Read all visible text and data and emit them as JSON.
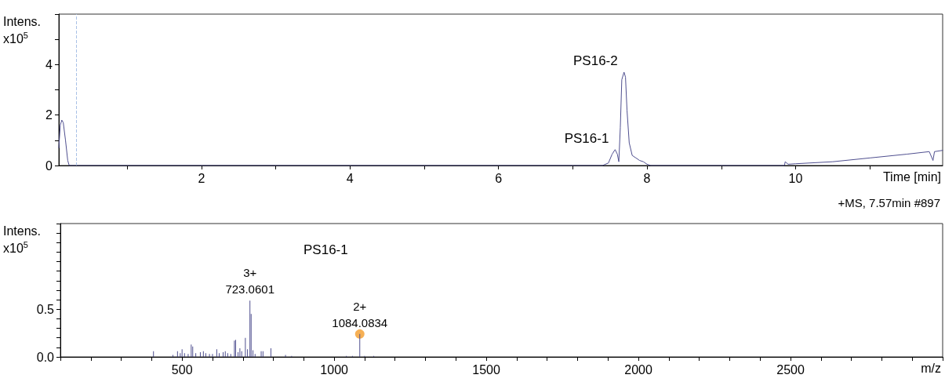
{
  "chart_data": [
    {
      "type": "line",
      "xlabel": "Time [min]",
      "ylabel": "Intens.\nx10$^{5}$",
      "xlim": [
        0.08,
        11.98
      ],
      "ylim": [
        0,
        6
      ],
      "xticks": [
        {
          "value": 1,
          "label": null
        },
        2,
        {
          "value": 3,
          "label": null
        },
        4,
        {
          "value": 5,
          "label": null
        },
        6,
        {
          "value": 7,
          "label": null
        },
        8,
        {
          "value": 9,
          "label": null
        },
        10,
        {
          "value": 11,
          "label": null
        }
      ],
      "yticks": [
        0,
        {
          "value": 1,
          "label": null
        },
        2,
        {
          "value": 3,
          "label": null
        },
        4,
        {
          "value": 5,
          "label": null
        },
        {
          "value": 6,
          "label": null
        }
      ],
      "series": [
        {
          "color": "#4f4f8f",
          "x": [
            0.08,
            0.1,
            0.12,
            0.14,
            0.17,
            0.2,
            0.22,
            1,
            2,
            3,
            4,
            5,
            6,
            7,
            7.4,
            7.48,
            7.53,
            7.57,
            7.6,
            7.62,
            7.64,
            7.66,
            7.69,
            7.71,
            7.73,
            7.76,
            7.8,
            7.85,
            7.9,
            7.95,
            8,
            8.05,
            9,
            9.85,
            9.86,
            9.9,
            10,
            10.5,
            11,
            11.5,
            11.8,
            11.85,
            11.87,
            11.98
          ],
          "values": [
            0.7,
            1.6,
            1.8,
            1.7,
            1,
            0.2,
            0,
            0,
            0,
            0,
            0,
            0,
            0,
            0,
            0,
            0.1,
            0.45,
            0.63,
            0.45,
            0.15,
            1.5,
            3.4,
            3.7,
            3.5,
            2.2,
            0.9,
            0.4,
            0.3,
            0.2,
            0.15,
            0.05,
            0,
            0,
            0,
            0.15,
            0.05,
            0.07,
            0.15,
            0.3,
            0.45,
            0.55,
            0.2,
            0.55,
            0.6
          ]
        }
      ],
      "ref_lines": [
        {
          "axis": "x",
          "value": 0.31,
          "color": "#a9c1e6",
          "line_style": "dashed"
        }
      ],
      "annotations": [
        {
          "text": "PS16-1",
          "x": 7.57,
          "y": 0.63
        },
        {
          "text": "PS16-2",
          "x": 7.69,
          "y": 3.7
        }
      ]
    },
    {
      "type": "bar",
      "xlabel": "m/z",
      "ylabel": "Intens.\nx10$^{5}$",
      "xlim": [
        100,
        3000
      ],
      "ylim": [
        0,
        1.4
      ],
      "xticks": [
        {
          "value": 100,
          "label": null
        },
        {
          "value": 200,
          "label": null
        },
        {
          "value": 300,
          "label": null
        },
        {
          "value": 400,
          "label": null
        },
        500,
        {
          "value": 600,
          "label": null
        },
        {
          "value": 700,
          "label": null
        },
        {
          "value": 800,
          "label": null
        },
        {
          "value": 900,
          "label": null
        },
        1000,
        {
          "value": 1100,
          "label": null
        },
        {
          "value": 1200,
          "label": null
        },
        {
          "value": 1300,
          "label": null
        },
        {
          "value": 1400,
          "label": null
        },
        1500,
        {
          "value": 1600,
          "label": null
        },
        {
          "value": 1700,
          "label": null
        },
        {
          "value": 1800,
          "label": null
        },
        {
          "value": 1900,
          "label": null
        },
        2000,
        {
          "value": 2100,
          "label": null
        },
        {
          "value": 2200,
          "label": null
        },
        {
          "value": 2300,
          "label": null
        },
        {
          "value": 2400,
          "label": null
        },
        2500,
        {
          "value": 2600,
          "label": null
        },
        {
          "value": 2700,
          "label": null
        },
        {
          "value": 2800,
          "label": null
        },
        {
          "value": 2900,
          "label": null
        },
        {
          "value": 3000,
          "label": null
        }
      ],
      "yticks": [
        {
          "value": 0,
          "label": "0.0"
        },
        {
          "value": 0.1,
          "label": null
        },
        {
          "value": 0.2,
          "label": null
        },
        {
          "value": 0.3,
          "label": null
        },
        {
          "value": 0.4,
          "label": null
        },
        {
          "value": 0.5,
          "label": "0.5"
        },
        {
          "value": 0.6,
          "label": null
        },
        {
          "value": 0.7,
          "label": null
        },
        {
          "value": 0.8,
          "label": null
        },
        {
          "value": 0.9,
          "label": null
        },
        {
          "value": 1,
          "label": null
        },
        {
          "value": 1.1,
          "label": null
        },
        {
          "value": 1.2,
          "label": null
        },
        {
          "value": 1.3,
          "label": null
        },
        {
          "value": 1.4,
          "label": null
        }
      ],
      "series": [
        {
          "color": "#4f4f8f",
          "x": [
            406,
            470,
            485,
            494,
            500,
            508,
            520,
            530,
            535,
            545,
            560,
            570,
            578,
            590,
            600,
            614,
            622,
            635,
            642,
            650,
            660,
            672,
            676,
            684,
            690,
            696,
            708,
            715,
            723.0601,
            727,
            733,
            740,
            760,
            766,
            792,
            840,
            860,
            1040,
            1060,
            1084.0834,
            1100,
            1130
          ],
          "values": [
            0.06,
            0.02,
            0.06,
            0.04,
            0.08,
            0.04,
            0.03,
            0.13,
            0.11,
            0.04,
            0.05,
            0.06,
            0.04,
            0.03,
            0.03,
            0.08,
            0.04,
            0.05,
            0.06,
            0.04,
            0.03,
            0.17,
            0.18,
            0.05,
            0.09,
            0.06,
            0.2,
            0.08,
            0.59,
            0.45,
            0.07,
            0.03,
            0.06,
            0.06,
            0.09,
            0.02,
            0.01,
            0.01,
            0.01,
            0.24,
            0.01,
            0.01
          ]
        },
        {
          "type": "scatter",
          "color": "#f5a742",
          "x": [
            1084.0834
          ],
          "values": [
            0.24
          ]
        }
      ],
      "annotations": [
        "+MS, 7.57min #897",
        "PS16-1",
        {
          "text": "3+\n723.0601",
          "x": 723.0601,
          "y": 0.59
        },
        {
          "text": "2+\n1084.0834",
          "x": 1084.0834,
          "y": 0.24
        }
      ]
    }
  ]
}
